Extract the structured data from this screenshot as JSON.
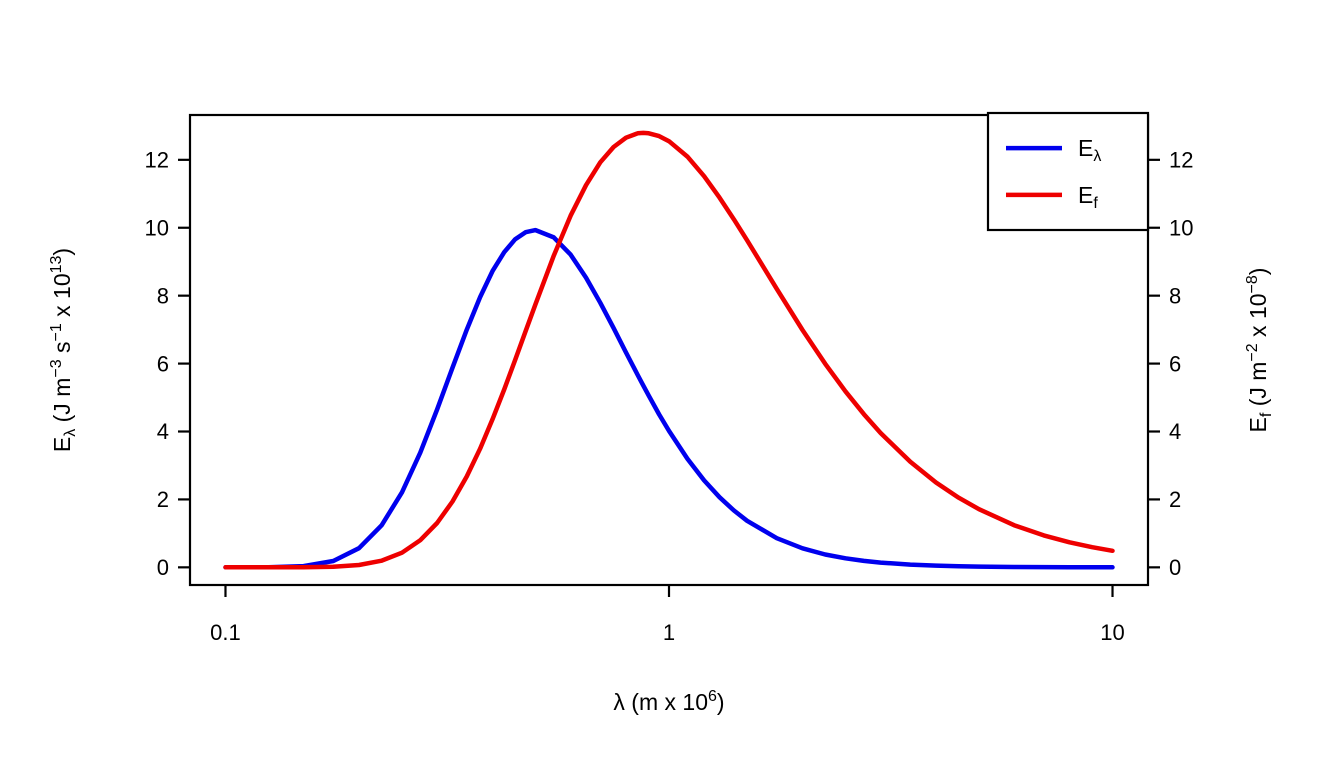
{
  "figure": {
    "background": "#ffffff",
    "axis_color": "#000000"
  },
  "chart_data": {
    "type": "line",
    "title": "",
    "grid": false,
    "x": [
      0.1,
      0.125,
      0.15,
      0.175,
      0.2,
      0.225,
      0.25,
      0.275,
      0.3,
      0.325,
      0.35,
      0.375,
      0.4,
      0.425,
      0.45,
      0.475,
      0.5,
      0.55,
      0.6,
      0.65,
      0.7,
      0.75,
      0.8,
      0.85,
      0.875,
      0.9,
      0.95,
      1.0,
      1.1,
      1.2,
      1.3,
      1.4,
      1.5,
      1.75,
      2.0,
      2.25,
      2.5,
      2.75,
      3.0,
      3.5,
      4.0,
      4.5,
      5.0,
      6.0,
      7.0,
      8.0,
      9.0,
      10.0
    ],
    "series": [
      {
        "name": "E_lambda",
        "legend_label": "E_λ",
        "legend_parts": [
          {
            "t": "E"
          },
          {
            "t": "λ",
            "s": "sub"
          }
        ],
        "color": "#0000EE",
        "values": [
          0.0,
          0.004,
          0.038,
          0.187,
          0.563,
          1.241,
          2.21,
          3.379,
          4.648,
          5.878,
          7.0,
          7.957,
          8.723,
          9.281,
          9.662,
          9.868,
          9.93,
          9.717,
          9.208,
          8.533,
          7.79,
          7.046,
          6.327,
          5.663,
          5.351,
          5.057,
          4.505,
          4.018,
          3.2,
          2.561,
          2.064,
          1.676,
          1.371,
          0.857,
          0.56,
          0.379,
          0.266,
          0.191,
          0.141,
          0.081,
          0.05,
          0.032,
          0.022,
          0.011,
          0.006,
          0.004,
          0.002,
          0.002
        ]
      },
      {
        "name": "E_f",
        "legend_label": "E_f",
        "legend_parts": [
          {
            "t": "E"
          },
          {
            "t": "f",
            "s": "sub"
          }
        ],
        "color": "#EE0000",
        "values": [
          0.0,
          0.0,
          0.003,
          0.018,
          0.07,
          0.196,
          0.431,
          0.798,
          1.306,
          1.939,
          2.678,
          3.494,
          4.358,
          5.236,
          6.11,
          6.953,
          7.75,
          9.179,
          10.354,
          11.253,
          11.928,
          12.378,
          12.651,
          12.781,
          12.792,
          12.781,
          12.7,
          12.548,
          12.095,
          11.517,
          10.888,
          10.251,
          9.629,
          8.198,
          6.989,
          5.995,
          5.181,
          4.509,
          3.957,
          3.107,
          2.498,
          2.05,
          1.711,
          1.242,
          0.942,
          0.738,
          0.594,
          0.488
        ]
      }
    ],
    "x_axis": {
      "label": "λ (m x 10^6)",
      "label_parts": [
        {
          "t": "λ"
        },
        {
          "t": " (m x 10"
        },
        {
          "t": "6",
          "s": "sup"
        },
        {
          "t": ")"
        }
      ],
      "scale": "log10",
      "ticks": [
        0.1,
        1,
        10
      ],
      "tick_labels": [
        "0.1",
        "1",
        "10"
      ],
      "range": [
        0.1,
        10
      ],
      "log_range_extended": [
        -1.08,
        1.08
      ]
    },
    "y_axis_left": {
      "label": "E_λ (J m^−3 s^−1 x 10^13)",
      "label_parts": [
        {
          "t": "E"
        },
        {
          "t": "λ",
          "s": "sub"
        },
        {
          "t": " (J m"
        },
        {
          "t": "−3",
          "s": "sup"
        },
        {
          "t": " s"
        },
        {
          "t": "−1",
          "s": "sup"
        },
        {
          "t": " x 10"
        },
        {
          "t": "13",
          "s": "sup"
        },
        {
          "t": ")"
        }
      ],
      "ticks": [
        0,
        2,
        4,
        6,
        8,
        10,
        12
      ],
      "tick_labels": [
        "0",
        "2",
        "4",
        "6",
        "8",
        "10",
        "12"
      ],
      "range_extended": [
        -0.52,
        13.32
      ]
    },
    "y_axis_right": {
      "label": "E_f (J m^−2 x 10^−8)",
      "label_parts": [
        {
          "t": "E"
        },
        {
          "t": "f",
          "s": "sub"
        },
        {
          "t": " (J m"
        },
        {
          "t": "−2",
          "s": "sup"
        },
        {
          "t": " x 10"
        },
        {
          "t": "−8",
          "s": "sup"
        },
        {
          "t": ")"
        }
      ],
      "ticks": [
        0,
        2,
        4,
        6,
        8,
        10,
        12
      ],
      "tick_labels": [
        "0",
        "2",
        "4",
        "6",
        "8",
        "10",
        "12"
      ]
    },
    "legend": {
      "position": "top-right",
      "border": true,
      "entries": [
        "E_λ",
        "E_f"
      ]
    }
  }
}
